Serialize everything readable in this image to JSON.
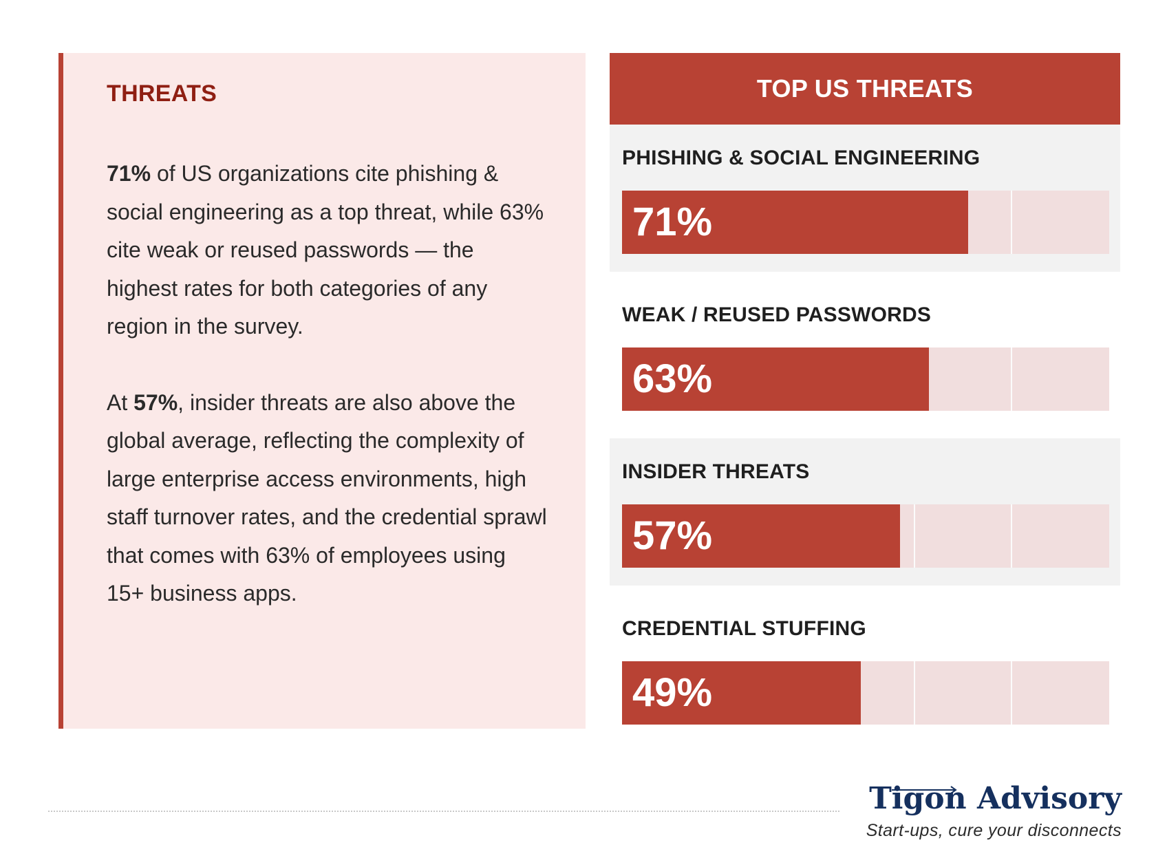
{
  "text_panel": {
    "heading": "THREATS",
    "p1": {
      "lead": "71%",
      "rest": " of US organizations cite phishing & social engineering as a top threat, while 63% cite weak or reused passwords — the highest rates for both categories of any region in the survey."
    },
    "p2": {
      "before": "At ",
      "bold": "57%",
      "rest": ", insider threats are also above the global average, reflecting the complexity of large enterprise access environments, high staff turnover rates, and the credential sprawl that comes with 63% of employees using 15+ business apps."
    }
  },
  "colors": {
    "accent": "#b84234",
    "heading_red": "#8f1f13",
    "panel_pink": "#fbe9e8",
    "track": "#f1dede",
    "row_gray": "#f2f2f2",
    "logo_navy": "#15305e"
  },
  "chart_data": {
    "type": "bar",
    "orientation": "horizontal",
    "title": "TOP US THREATS",
    "categories": [
      "PHISHING & SOCIAL ENGINEERING",
      "WEAK / REUSED PASSWORDS",
      "INSIDER THREATS",
      "CREDENTIAL STUFFING"
    ],
    "values": [
      71,
      63,
      57,
      49
    ],
    "value_labels": [
      "71%",
      "63%",
      "57%",
      "49%"
    ],
    "unit": "%",
    "xlim": [
      0,
      100
    ],
    "gridlines_at": [
      60,
      80
    ],
    "grid": true,
    "legend": "none"
  },
  "logo": {
    "name": "Tigon Advisory",
    "tagline": "Start-ups, cure your disconnects"
  }
}
